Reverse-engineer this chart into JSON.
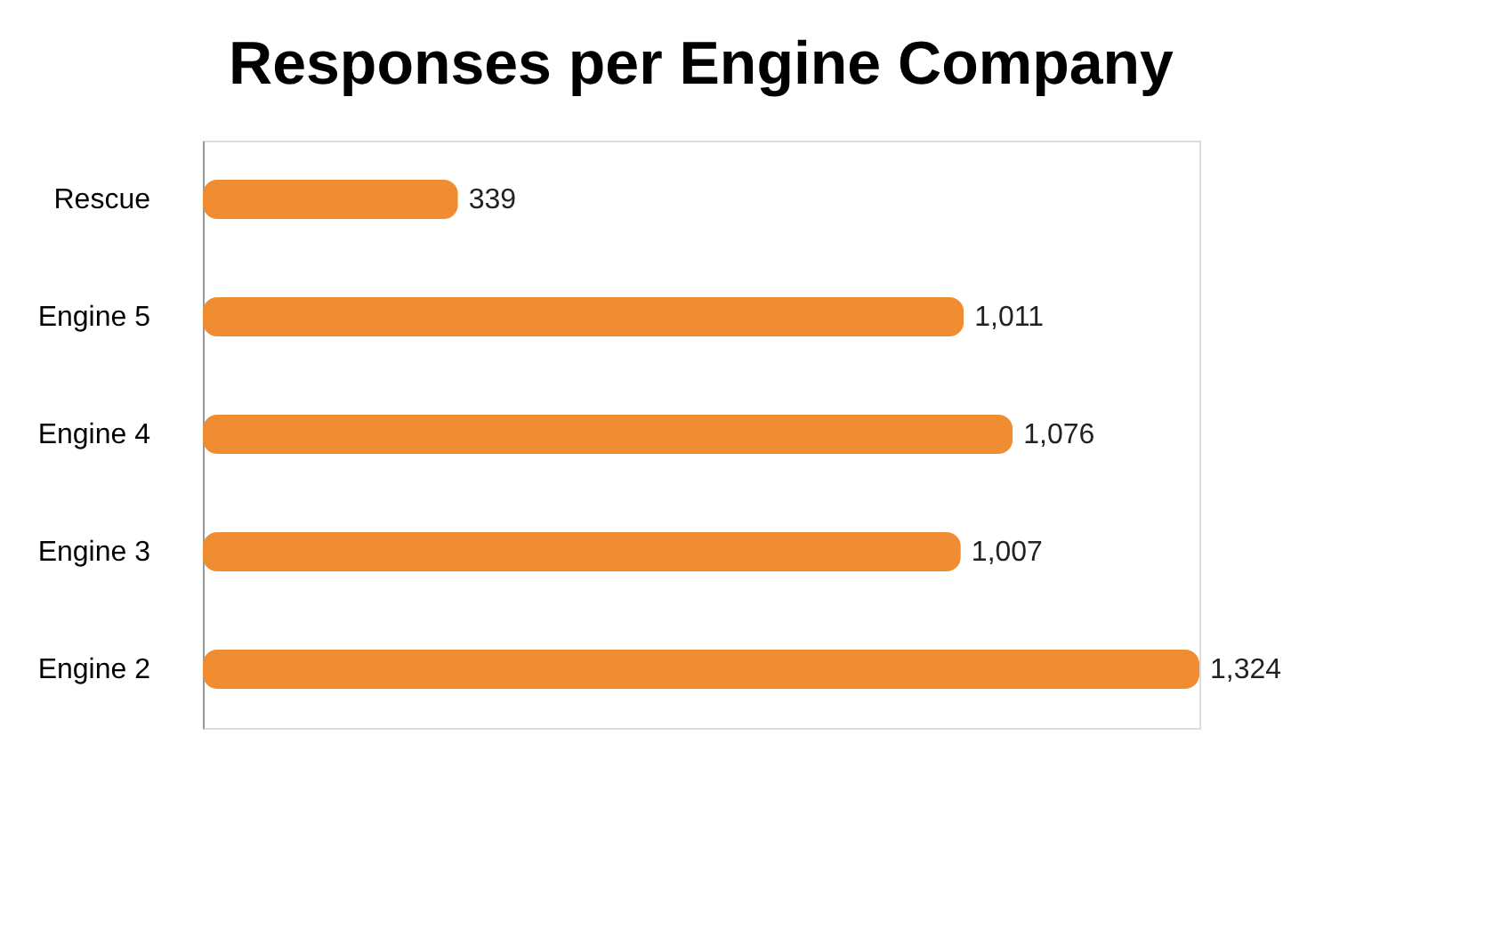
{
  "chart_data": {
    "type": "bar",
    "orientation": "horizontal",
    "title": "Responses per Engine Company",
    "categories": [
      "Rescue",
      "Engine 5",
      "Engine 4",
      "Engine 3",
      "Engine 2"
    ],
    "values": [
      339,
      1011,
      1076,
      1007,
      1324
    ],
    "color": "#f08c32",
    "value_labels": [
      "339",
      "1,011",
      "1,076",
      "1,007",
      "1,324"
    ]
  }
}
